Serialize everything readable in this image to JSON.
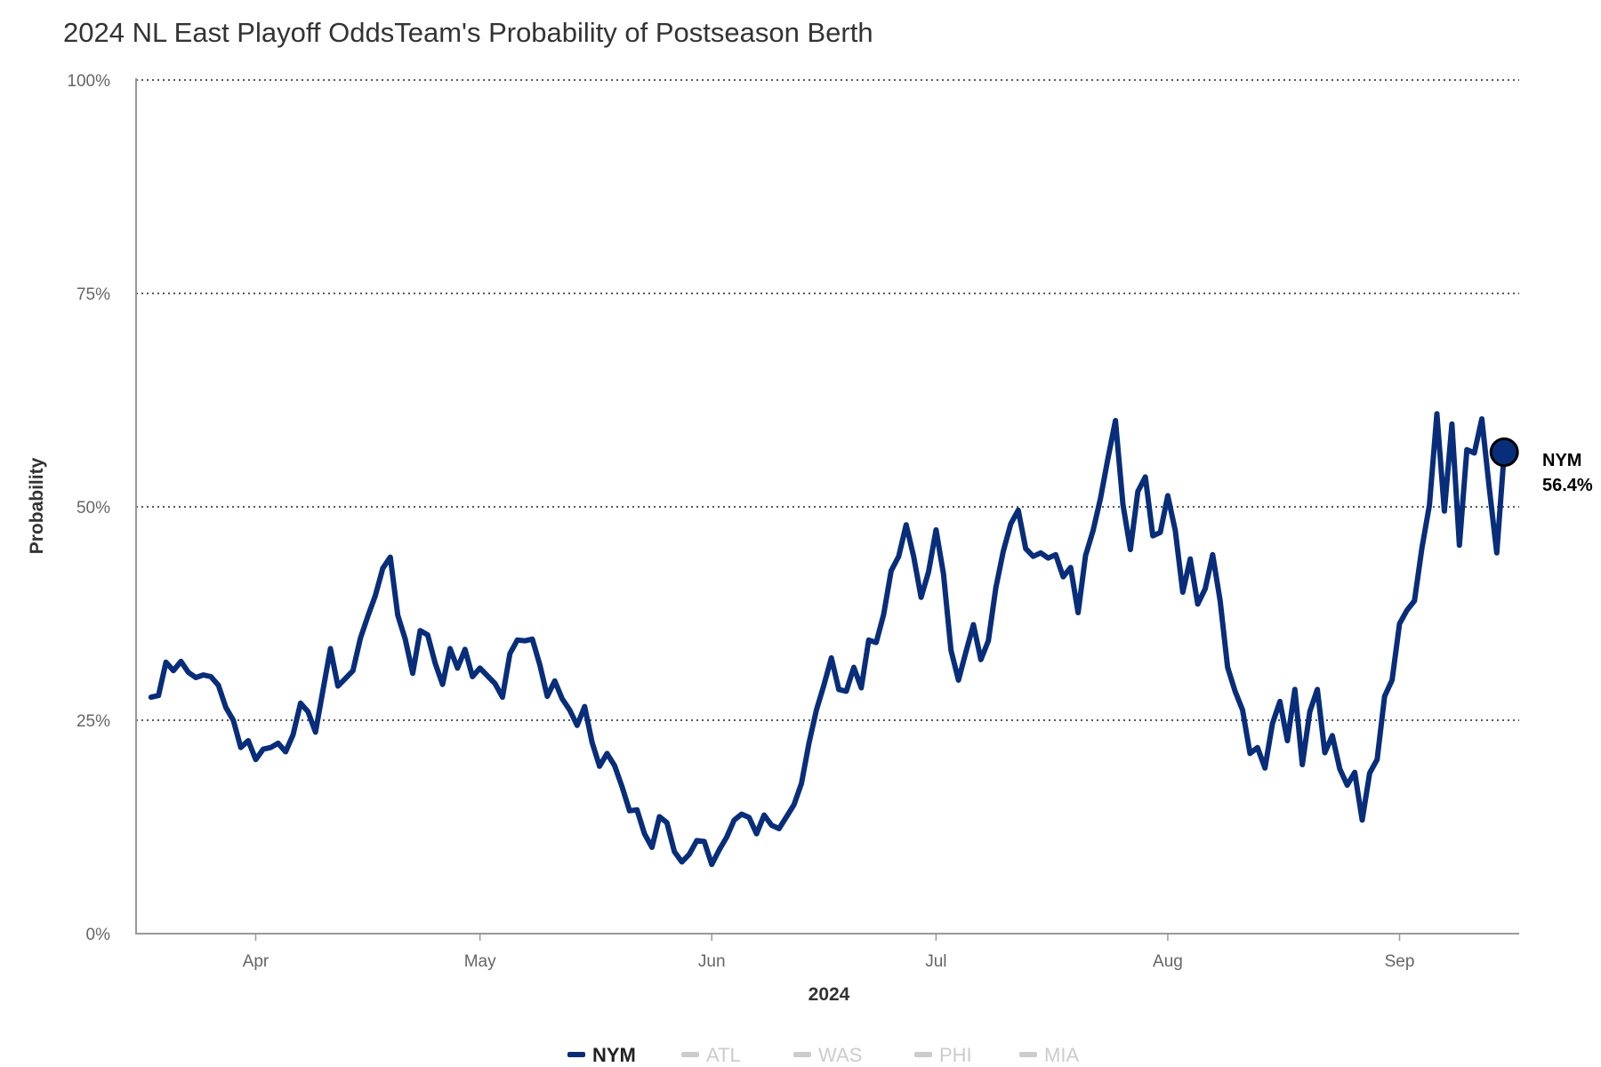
{
  "title": "2024 NL East Playoff OddsTeam's Probability of Postseason Berth",
  "chart_data": {
    "type": "line",
    "xlabel": "2024",
    "ylabel": "Probability",
    "ylim": [
      0,
      100
    ],
    "y_ticks": [
      {
        "value": 0,
        "label": "0%"
      },
      {
        "value": 25,
        "label": "25%"
      },
      {
        "value": 50,
        "label": "50%"
      },
      {
        "value": 75,
        "label": "75%"
      },
      {
        "value": 100,
        "label": "100%"
      }
    ],
    "x_range": [
      "2024-03-16",
      "2024-09-17"
    ],
    "x_ticks": [
      {
        "value": "2024-04-01",
        "label": "Apr"
      },
      {
        "value": "2024-05-01",
        "label": "May"
      },
      {
        "value": "2024-06-01",
        "label": "Jun"
      },
      {
        "value": "2024-07-01",
        "label": "Jul"
      },
      {
        "value": "2024-08-01",
        "label": "Aug"
      },
      {
        "value": "2024-09-01",
        "label": "Sep"
      }
    ],
    "grid": "horizontal dotted",
    "legend_position": "bottom-center",
    "series": [
      {
        "name": "NYM",
        "color": "#082d7a",
        "active": true,
        "end_label": "NYM",
        "end_value_label": "56.4%",
        "points": [
          [
            "2024-03-18",
            27.7
          ],
          [
            "2024-03-19",
            27.9
          ],
          [
            "2024-03-20",
            31.8
          ],
          [
            "2024-03-21",
            30.8
          ],
          [
            "2024-03-22",
            31.9
          ],
          [
            "2024-03-23",
            30.6
          ],
          [
            "2024-03-24",
            30.0
          ],
          [
            "2024-03-25",
            30.3
          ],
          [
            "2024-03-26",
            30.1
          ],
          [
            "2024-03-27",
            29.1
          ],
          [
            "2024-03-28",
            26.5
          ],
          [
            "2024-03-29",
            25.0
          ],
          [
            "2024-03-30",
            21.8
          ],
          [
            "2024-03-31",
            22.6
          ],
          [
            "2024-04-01",
            20.4
          ],
          [
            "2024-04-02",
            21.6
          ],
          [
            "2024-04-03",
            21.8
          ],
          [
            "2024-04-04",
            22.3
          ],
          [
            "2024-04-05",
            21.3
          ],
          [
            "2024-04-06",
            23.3
          ],
          [
            "2024-04-07",
            27.0
          ],
          [
            "2024-04-08",
            26.0
          ],
          [
            "2024-04-09",
            23.6
          ],
          [
            "2024-04-10",
            28.5
          ],
          [
            "2024-04-11",
            33.4
          ],
          [
            "2024-04-12",
            29.0
          ],
          [
            "2024-04-13",
            29.9
          ],
          [
            "2024-04-14",
            30.8
          ],
          [
            "2024-04-15",
            34.6
          ],
          [
            "2024-04-16",
            37.2
          ],
          [
            "2024-04-17",
            39.6
          ],
          [
            "2024-04-18",
            42.8
          ],
          [
            "2024-04-19",
            44.1
          ],
          [
            "2024-04-20",
            37.3
          ],
          [
            "2024-04-21",
            34.5
          ],
          [
            "2024-04-22",
            30.5
          ],
          [
            "2024-04-23",
            35.5
          ],
          [
            "2024-04-24",
            35.0
          ],
          [
            "2024-04-25",
            31.7
          ],
          [
            "2024-04-26",
            29.2
          ],
          [
            "2024-04-27",
            33.4
          ],
          [
            "2024-04-28",
            31.1
          ],
          [
            "2024-04-29",
            33.3
          ],
          [
            "2024-04-30",
            30.1
          ],
          [
            "2024-05-01",
            31.1
          ],
          [
            "2024-05-02",
            30.2
          ],
          [
            "2024-05-03",
            29.3
          ],
          [
            "2024-05-04",
            27.7
          ],
          [
            "2024-05-05",
            32.8
          ],
          [
            "2024-05-06",
            34.4
          ],
          [
            "2024-05-07",
            34.3
          ],
          [
            "2024-05-08",
            34.5
          ],
          [
            "2024-05-09",
            31.5
          ],
          [
            "2024-05-10",
            27.8
          ],
          [
            "2024-05-11",
            29.6
          ],
          [
            "2024-05-12",
            27.5
          ],
          [
            "2024-05-13",
            26.2
          ],
          [
            "2024-05-14",
            24.4
          ],
          [
            "2024-05-15",
            26.6
          ],
          [
            "2024-05-16",
            22.4
          ],
          [
            "2024-05-17",
            19.6
          ],
          [
            "2024-05-18",
            21.1
          ],
          [
            "2024-05-19",
            19.7
          ],
          [
            "2024-05-20",
            17.2
          ],
          [
            "2024-05-21",
            14.4
          ],
          [
            "2024-05-22",
            14.5
          ],
          [
            "2024-05-23",
            11.7
          ],
          [
            "2024-05-24",
            10.1
          ],
          [
            "2024-05-25",
            13.7
          ],
          [
            "2024-05-26",
            13.0
          ],
          [
            "2024-05-27",
            9.6
          ],
          [
            "2024-05-28",
            8.4
          ],
          [
            "2024-05-29",
            9.3
          ],
          [
            "2024-05-30",
            10.9
          ],
          [
            "2024-05-31",
            10.8
          ],
          [
            "2024-06-01",
            8.1
          ],
          [
            "2024-06-02",
            9.8
          ],
          [
            "2024-06-03",
            11.3
          ],
          [
            "2024-06-04",
            13.3
          ],
          [
            "2024-06-05",
            14.0
          ],
          [
            "2024-06-06",
            13.6
          ],
          [
            "2024-06-07",
            11.7
          ],
          [
            "2024-06-08",
            13.9
          ],
          [
            "2024-06-09",
            12.7
          ],
          [
            "2024-06-10",
            12.3
          ],
          [
            "2024-06-11",
            13.7
          ],
          [
            "2024-06-12",
            15.1
          ],
          [
            "2024-06-13",
            17.6
          ],
          [
            "2024-06-14",
            22.3
          ],
          [
            "2024-06-15",
            26.2
          ],
          [
            "2024-06-16",
            29.1
          ],
          [
            "2024-06-17",
            32.3
          ],
          [
            "2024-06-18",
            28.6
          ],
          [
            "2024-06-19",
            28.4
          ],
          [
            "2024-06-20",
            31.2
          ],
          [
            "2024-06-21",
            28.8
          ],
          [
            "2024-06-22",
            34.4
          ],
          [
            "2024-06-23",
            34.1
          ],
          [
            "2024-06-24",
            37.4
          ],
          [
            "2024-06-25",
            42.5
          ],
          [
            "2024-06-26",
            44.2
          ],
          [
            "2024-06-27",
            47.9
          ],
          [
            "2024-06-28",
            44.2
          ],
          [
            "2024-06-29",
            39.4
          ],
          [
            "2024-06-30",
            42.4
          ],
          [
            "2024-07-01",
            47.3
          ],
          [
            "2024-07-02",
            42.1
          ],
          [
            "2024-07-03",
            33.2
          ],
          [
            "2024-07-04",
            29.7
          ],
          [
            "2024-07-05",
            33.0
          ],
          [
            "2024-07-06",
            36.2
          ],
          [
            "2024-07-07",
            32.1
          ],
          [
            "2024-07-08",
            34.3
          ],
          [
            "2024-07-09",
            40.5
          ],
          [
            "2024-07-10",
            44.8
          ],
          [
            "2024-07-11",
            48.0
          ],
          [
            "2024-07-12",
            49.6
          ],
          [
            "2024-07-13",
            45.1
          ],
          [
            "2024-07-14",
            44.2
          ],
          [
            "2024-07-15",
            44.6
          ],
          [
            "2024-07-16",
            44.0
          ],
          [
            "2024-07-17",
            44.4
          ],
          [
            "2024-07-18",
            41.8
          ],
          [
            "2024-07-19",
            42.9
          ],
          [
            "2024-07-20",
            37.6
          ],
          [
            "2024-07-21",
            44.3
          ],
          [
            "2024-07-22",
            47.2
          ],
          [
            "2024-07-23",
            51.0
          ],
          [
            "2024-07-24",
            55.7
          ],
          [
            "2024-07-25",
            60.1
          ],
          [
            "2024-07-26",
            50.3
          ],
          [
            "2024-07-27",
            45.0
          ],
          [
            "2024-07-28",
            51.8
          ],
          [
            "2024-07-29",
            53.5
          ],
          [
            "2024-07-30",
            46.6
          ],
          [
            "2024-07-31",
            47.0
          ],
          [
            "2024-08-01",
            51.3
          ],
          [
            "2024-08-02",
            47.2
          ],
          [
            "2024-08-03",
            40.0
          ],
          [
            "2024-08-04",
            43.9
          ],
          [
            "2024-08-05",
            38.6
          ],
          [
            "2024-08-06",
            40.4
          ],
          [
            "2024-08-07",
            44.4
          ],
          [
            "2024-08-08",
            39.0
          ],
          [
            "2024-08-09",
            31.2
          ],
          [
            "2024-08-10",
            28.4
          ],
          [
            "2024-08-11",
            26.2
          ],
          [
            "2024-08-12",
            21.1
          ],
          [
            "2024-08-13",
            21.8
          ],
          [
            "2024-08-14",
            19.4
          ],
          [
            "2024-08-15",
            24.6
          ],
          [
            "2024-08-16",
            27.2
          ],
          [
            "2024-08-17",
            22.6
          ],
          [
            "2024-08-18",
            28.6
          ],
          [
            "2024-08-19",
            19.8
          ],
          [
            "2024-08-20",
            26.0
          ],
          [
            "2024-08-21",
            28.6
          ],
          [
            "2024-08-22",
            21.2
          ],
          [
            "2024-08-23",
            23.2
          ],
          [
            "2024-08-24",
            19.3
          ],
          [
            "2024-08-25",
            17.4
          ],
          [
            "2024-08-26",
            18.9
          ],
          [
            "2024-08-27",
            13.3
          ],
          [
            "2024-08-28",
            18.8
          ],
          [
            "2024-08-29",
            20.4
          ],
          [
            "2024-08-30",
            27.8
          ],
          [
            "2024-08-31",
            29.7
          ],
          [
            "2024-09-01",
            36.3
          ],
          [
            "2024-09-02",
            37.9
          ],
          [
            "2024-09-03",
            39.0
          ],
          [
            "2024-09-04",
            45.2
          ],
          [
            "2024-09-05",
            50.2
          ],
          [
            "2024-09-06",
            60.9
          ],
          [
            "2024-09-07",
            49.5
          ],
          [
            "2024-09-08",
            59.7
          ],
          [
            "2024-09-09",
            45.5
          ],
          [
            "2024-09-10",
            56.7
          ],
          [
            "2024-09-11",
            56.3
          ],
          [
            "2024-09-12",
            60.3
          ],
          [
            "2024-09-13",
            52.2
          ],
          [
            "2024-09-14",
            44.6
          ],
          [
            "2024-09-15",
            56.4
          ]
        ]
      },
      {
        "name": "ATL",
        "color": "#cccccc",
        "active": false
      },
      {
        "name": "WAS",
        "color": "#cccccc",
        "active": false
      },
      {
        "name": "PHI",
        "color": "#cccccc",
        "active": false
      },
      {
        "name": "MIA",
        "color": "#cccccc",
        "active": false
      }
    ]
  }
}
